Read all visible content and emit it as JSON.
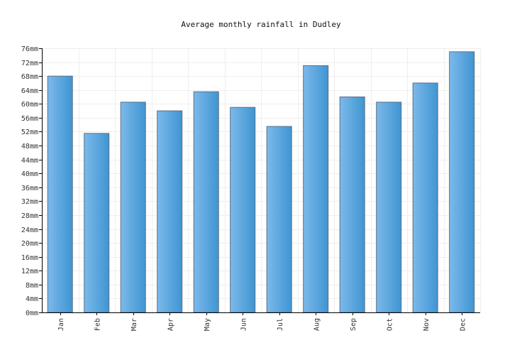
{
  "chart_data": {
    "type": "bar",
    "title": "Average monthly rainfall in Dudley",
    "xlabel": "",
    "ylabel": "",
    "categories": [
      "Jan",
      "Feb",
      "Mar",
      "Apr",
      "May",
      "Jun",
      "Jul",
      "Aug",
      "Sep",
      "Oct",
      "Nov",
      "Dec"
    ],
    "values": [
      68,
      51.5,
      60.5,
      58,
      63.5,
      59,
      53.5,
      71,
      62,
      60.5,
      66,
      75
    ],
    "unit": "mm",
    "ylim": [
      0,
      76
    ],
    "ytick_step": 4,
    "grid": true,
    "legend": "none",
    "colors": {
      "bar_dark": "#3f95d2",
      "bar_light": "#7cb9ea",
      "bar_border": "#5a6f86",
      "grid": "#eeeeee",
      "axis": "#000000"
    }
  }
}
